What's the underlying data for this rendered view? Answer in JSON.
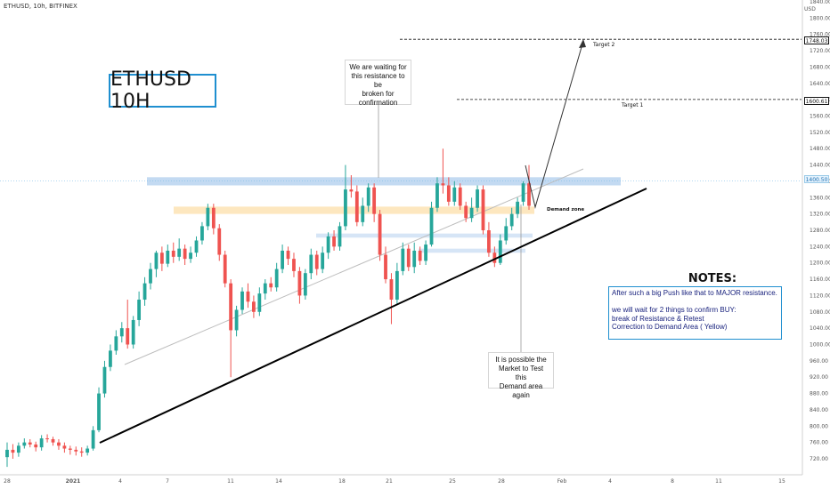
{
  "header": {
    "symbol": "ETHUSD, 10h, BITFINEX",
    "currency": "USD"
  },
  "title_box": {
    "text": "ETHUSD 10H"
  },
  "callouts": {
    "resistance": "We are waiting for\nthis resistance to be\nbroken for\nconfirmation",
    "demand": "It is possible the\nMarket to Test this\nDemand area again"
  },
  "notes": {
    "title": "NOTES:",
    "lines": [
      "After such a big Push like that to MAJOR resistance.",
      "",
      "we will wait for 2 things to confirm BUY:",
      "break of Resistance & Retest",
      "Correction to Demand Area ( Yellow)"
    ]
  },
  "labels": {
    "target1": "Target 1",
    "target2": "Target 2",
    "demand_zone": "Demand zone"
  },
  "price_tags": [
    {
      "value": "1748.03",
      "bg": "#ffffff",
      "fg": "#111111",
      "border": "#111111"
    },
    {
      "value": "1600.61",
      "bg": "#ffffff",
      "fg": "#111111",
      "border": "#111111"
    },
    {
      "value": "1400.50",
      "bg": "#e3f2fd",
      "fg": "#1f6fb0",
      "border": "#9ccbe8"
    }
  ],
  "colors": {
    "up": "#26a69a",
    "down": "#ef5350",
    "resistance_zone": "#b9d3f0",
    "demand_zone": "#fde3b4",
    "accent": "#1f8fd0"
  },
  "chart_data": {
    "type": "candlestick",
    "symbol": "ETHUSD",
    "timeframe": "10h",
    "exchange": "BITFINEX",
    "y_axis": {
      "ticks": [
        "720.00",
        "760.00",
        "800.00",
        "840.00",
        "880.00",
        "920.00",
        "960.00",
        "1000.00",
        "1040.00",
        "1080.00",
        "1120.00",
        "1160.00",
        "1200.00",
        "1240.00",
        "1280.00",
        "1320.00",
        "1360.00",
        "1400.00",
        "1440.00",
        "1480.00",
        "1520.00",
        "1560.00",
        "1600.00",
        "1640.00",
        "1680.00",
        "1720.00",
        "1760.00",
        "1800.00",
        "1840.00"
      ],
      "top_tick": "1840.00",
      "ylim": [
        700,
        1840
      ]
    },
    "x_axis": {
      "ticks": [
        "28",
        "2021",
        "4",
        "7",
        "11",
        "14",
        "18",
        "21",
        "25",
        "28",
        "Feb",
        "4",
        "8",
        "11",
        "15"
      ]
    },
    "candles": [
      [
        724,
        742,
        700,
        760
      ],
      [
        742,
        735,
        720,
        756
      ],
      [
        735,
        752,
        725,
        760
      ],
      [
        752,
        760,
        745,
        770
      ],
      [
        760,
        755,
        748,
        768
      ],
      [
        755,
        748,
        738,
        762
      ],
      [
        748,
        770,
        740,
        778
      ],
      [
        770,
        768,
        760,
        780
      ],
      [
        768,
        760,
        752,
        774
      ],
      [
        760,
        752,
        742,
        768
      ],
      [
        752,
        745,
        735,
        760
      ],
      [
        745,
        742,
        730,
        752
      ],
      [
        742,
        738,
        728,
        750
      ],
      [
        738,
        735,
        725,
        748
      ],
      [
        735,
        745,
        728,
        752
      ],
      [
        745,
        790,
        740,
        800
      ],
      [
        790,
        880,
        785,
        895
      ],
      [
        880,
        945,
        870,
        960
      ],
      [
        945,
        985,
        935,
        1000
      ],
      [
        985,
        1020,
        975,
        1035
      ],
      [
        1020,
        1040,
        1005,
        1055
      ],
      [
        1040,
        1000,
        990,
        1110
      ],
      [
        1000,
        1060,
        990,
        1070
      ],
      [
        1060,
        1110,
        1045,
        1130
      ],
      [
        1110,
        1150,
        1095,
        1165
      ],
      [
        1150,
        1185,
        1135,
        1200
      ],
      [
        1185,
        1225,
        1165,
        1230
      ],
      [
        1225,
        1198,
        1180,
        1240
      ],
      [
        1198,
        1230,
        1190,
        1245
      ],
      [
        1230,
        1215,
        1200,
        1250
      ],
      [
        1215,
        1235,
        1205,
        1260
      ],
      [
        1235,
        1210,
        1195,
        1245
      ],
      [
        1210,
        1225,
        1200,
        1240
      ],
      [
        1225,
        1255,
        1215,
        1265
      ],
      [
        1255,
        1290,
        1245,
        1300
      ],
      [
        1290,
        1335,
        1280,
        1345
      ],
      [
        1335,
        1285,
        1270,
        1345
      ],
      [
        1285,
        1220,
        1205,
        1295
      ],
      [
        1220,
        1150,
        1140,
        1230
      ],
      [
        1150,
        1035,
        920,
        1160
      ],
      [
        1035,
        1085,
        1020,
        1095
      ],
      [
        1085,
        1130,
        1075,
        1140
      ],
      [
        1130,
        1105,
        1090,
        1150
      ],
      [
        1105,
        1080,
        1065,
        1120
      ],
      [
        1080,
        1125,
        1070,
        1140
      ],
      [
        1125,
        1150,
        1110,
        1160
      ],
      [
        1150,
        1140,
        1130,
        1165
      ],
      [
        1140,
        1185,
        1130,
        1200
      ],
      [
        1185,
        1230,
        1175,
        1245
      ],
      [
        1230,
        1210,
        1195,
        1240
      ],
      [
        1210,
        1180,
        1165,
        1225
      ],
      [
        1180,
        1120,
        1100,
        1190
      ],
      [
        1120,
        1175,
        1110,
        1185
      ],
      [
        1175,
        1220,
        1160,
        1235
      ],
      [
        1220,
        1185,
        1170,
        1230
      ],
      [
        1185,
        1225,
        1175,
        1240
      ],
      [
        1225,
        1265,
        1210,
        1275
      ],
      [
        1265,
        1240,
        1230,
        1280
      ],
      [
        1240,
        1290,
        1230,
        1300
      ],
      [
        1290,
        1380,
        1280,
        1440
      ],
      [
        1380,
        1375,
        1360,
        1415
      ],
      [
        1375,
        1300,
        1290,
        1390
      ],
      [
        1300,
        1340,
        1290,
        1360
      ],
      [
        1340,
        1385,
        1325,
        1395
      ],
      [
        1385,
        1320,
        1300,
        1395
      ],
      [
        1320,
        1220,
        1205,
        1330
      ],
      [
        1220,
        1160,
        1150,
        1240
      ],
      [
        1160,
        1110,
        1050,
        1175
      ],
      [
        1110,
        1180,
        1100,
        1200
      ],
      [
        1180,
        1235,
        1170,
        1250
      ],
      [
        1235,
        1190,
        1180,
        1245
      ],
      [
        1190,
        1230,
        1175,
        1250
      ],
      [
        1230,
        1205,
        1195,
        1240
      ],
      [
        1205,
        1245,
        1195,
        1255
      ],
      [
        1245,
        1335,
        1240,
        1350
      ],
      [
        1335,
        1395,
        1325,
        1410
      ],
      [
        1395,
        1390,
        1370,
        1480
      ],
      [
        1390,
        1350,
        1340,
        1410
      ],
      [
        1350,
        1385,
        1340,
        1400
      ],
      [
        1385,
        1340,
        1330,
        1395
      ],
      [
        1340,
        1310,
        1300,
        1350
      ],
      [
        1310,
        1335,
        1300,
        1360
      ],
      [
        1335,
        1380,
        1325,
        1390
      ],
      [
        1380,
        1280,
        1270,
        1390
      ],
      [
        1280,
        1225,
        1215,
        1300
      ],
      [
        1225,
        1200,
        1190,
        1240
      ],
      [
        1200,
        1255,
        1195,
        1270
      ],
      [
        1255,
        1290,
        1245,
        1310
      ],
      [
        1290,
        1320,
        1280,
        1335
      ],
      [
        1320,
        1350,
        1310,
        1360
      ],
      [
        1350,
        1395,
        1340,
        1400
      ],
      [
        1395,
        1340,
        1330,
        1440
      ]
    ],
    "zones": {
      "resistance": {
        "y1": 1390,
        "y2": 1410
      },
      "demand": {
        "y1": 1320,
        "y2": 1338
      },
      "mid_zone": {
        "y1": 1262,
        "y2": 1272
      },
      "lower_zone": {
        "y1": 1225,
        "y2": 1235
      }
    },
    "levels": {
      "current": 1400.5,
      "target1": 1600.61,
      "target2": 1748.03
    }
  }
}
